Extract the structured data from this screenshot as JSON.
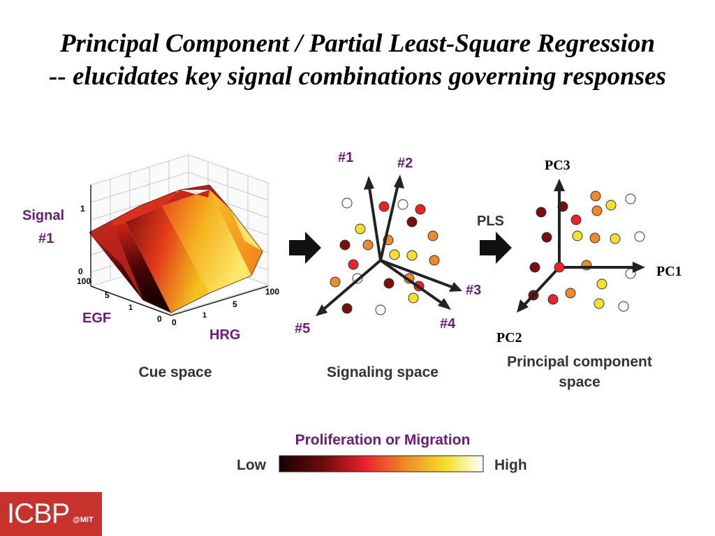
{
  "title": {
    "line1": "Principal Component / Partial Least-Square Regression",
    "line2": "-- elucidates key signal combinations governing responses"
  },
  "cue_space": {
    "z_label_line1": "Signal",
    "z_label_line2": "#1",
    "x_label": "EGF",
    "y_label": "HRG",
    "caption": "Cue space",
    "z_ticks": [
      "0",
      "1"
    ],
    "egf_ticks": [
      "0",
      "5",
      "100"
    ],
    "hrg_ticks": [
      "0",
      "5",
      "100"
    ]
  },
  "signaling_space": {
    "vectors": [
      "#1",
      "#2",
      "#3",
      "#4",
      "#5"
    ],
    "caption": "Signaling space"
  },
  "pls_label": "PLS",
  "pc_space": {
    "axes": [
      "PC1",
      "PC2",
      "PC3"
    ],
    "caption_line1": "Principal component",
    "caption_line2": "space"
  },
  "colorbar": {
    "title": "Proliferation or Migration",
    "low": "Low",
    "high": "High",
    "colors": [
      "#1a0000",
      "#7a0e0e",
      "#e8232a",
      "#ef8a2a",
      "#f5e02e",
      "#ffffff"
    ]
  },
  "logo": {
    "text": "ICBP",
    "suffix": "@MIT"
  },
  "colors": {
    "label_purple": "#6b1b7a",
    "accent_red": "#c8322d"
  }
}
